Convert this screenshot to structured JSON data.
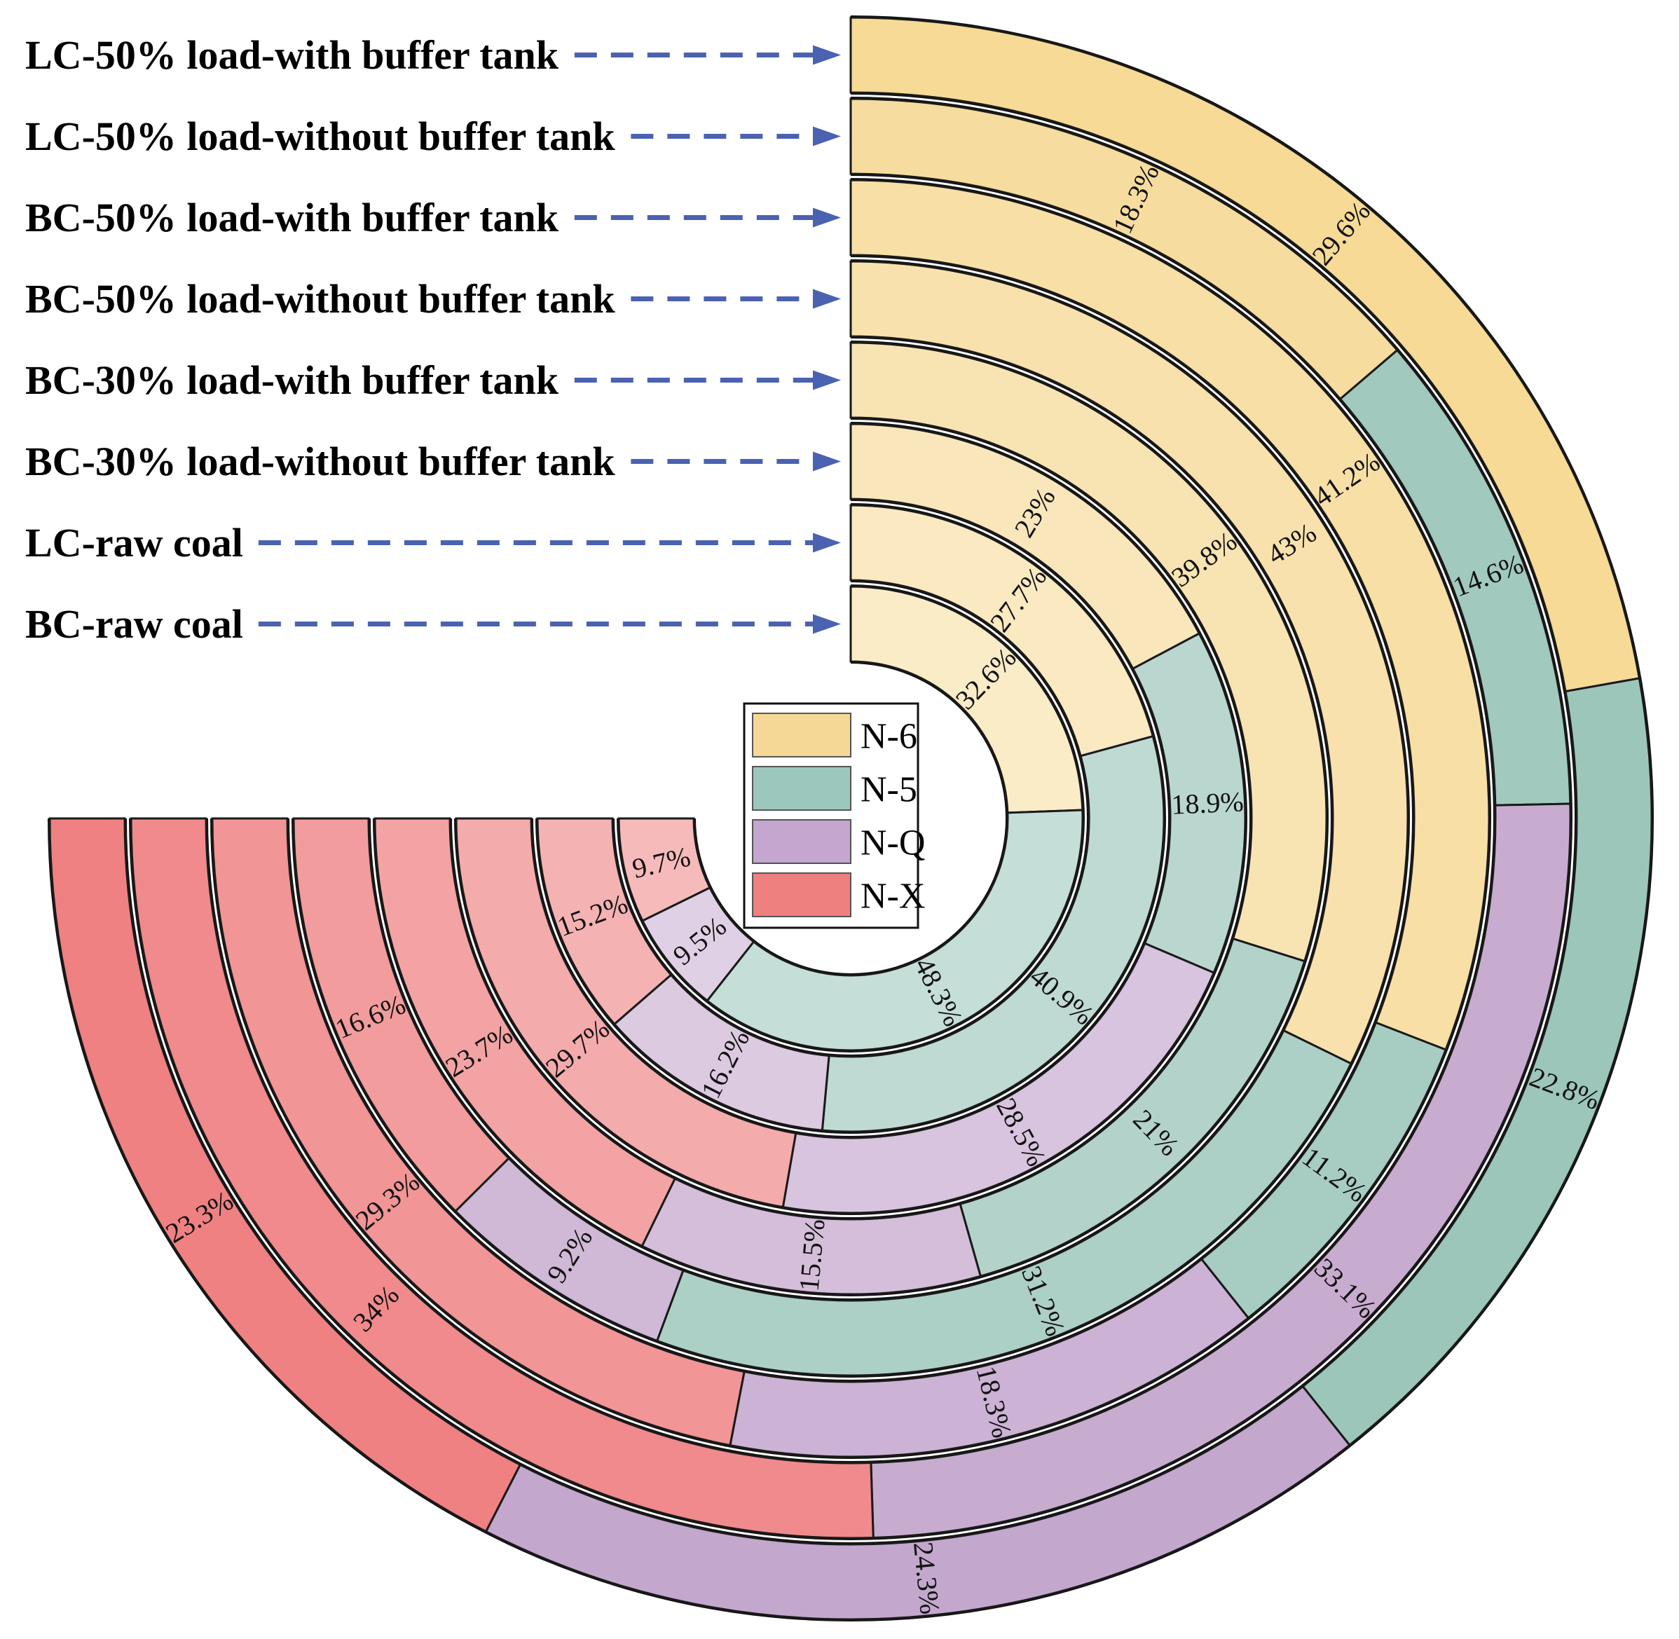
{
  "chart_data": {
    "type": "radial-stacked-bar",
    "title": "",
    "legend_position": "center",
    "legend": [
      {
        "name": "N-6",
        "color": "#F5D896"
      },
      {
        "name": "N-5",
        "color": "#9CC7BC"
      },
      {
        "name": "N-Q",
        "color": "#C4A6CE"
      },
      {
        "name": "N-X",
        "color": "#EE8080"
      }
    ],
    "rings": [
      {
        "label": "LC-50% load-with buffer tank",
        "values": {
          "N-6": 29.6,
          "N-5": 22.8,
          "N-Q": 24.3,
          "N-X": 23.3
        },
        "texts": {
          "N-6": "29.6%",
          "N-5": "22.8%",
          "N-Q": "24.3%",
          "N-X": "23.3%"
        }
      },
      {
        "label": "LC-50% load-without buffer tank",
        "values": {
          "N-6": 18.3,
          "N-5": 14.6,
          "N-Q": 33.1,
          "N-X": 34.0
        },
        "texts": {
          "N-6": "18.3%",
          "N-5": "14.6%",
          "N-Q": "33.1%",
          "N-X": "34%"
        }
      },
      {
        "label": "BC-50% load-with buffer tank",
        "values": {
          "N-6": 41.2,
          "N-5": 11.2,
          "N-Q": 18.3,
          "N-X": 29.3
        },
        "texts": {
          "N-6": "41.2%",
          "N-5": "11.2%",
          "N-Q": "18.3%",
          "N-X": "29.3%"
        }
      },
      {
        "label": "BC-50% load-without buffer tank",
        "values": {
          "N-6": 43.0,
          "N-5": 31.2,
          "N-Q": 9.2,
          "N-X": 16.6
        },
        "texts": {
          "N-6": "43%",
          "N-5": "31.2%",
          "N-Q": "9.2%",
          "N-X": "16.6%"
        }
      },
      {
        "label": "BC-30% load-with buffer tank",
        "values": {
          "N-6": 39.8,
          "N-5": 21.0,
          "N-Q": 15.5,
          "N-X": 23.7
        },
        "texts": {
          "N-6": "39.8%",
          "N-5": "21%",
          "N-Q": "15.5%",
          "N-X": "23.7%"
        }
      },
      {
        "label": "BC-30% load-without buffer tank",
        "values": {
          "N-6": 23.0,
          "N-5": 18.9,
          "N-Q": 28.5,
          "N-X": 29.7
        },
        "texts": {
          "N-6": "23%",
          "N-5": "18.9%",
          "N-Q": "28.5%",
          "N-X": "29.7%"
        }
      },
      {
        "label": "LC-raw coal",
        "values": {
          "N-6": 27.7,
          "N-5": 40.9,
          "N-Q": 16.2,
          "N-X": 15.2
        },
        "texts": {
          "N-6": "27.7%",
          "N-5": "40.9%",
          "N-Q": "16.2%",
          "N-X": "15.2%"
        }
      },
      {
        "label": "BC-raw coal",
        "values": {
          "N-6": 32.6,
          "N-5": 48.3,
          "N-Q": 9.5,
          "N-X": 9.7
        },
        "texts": {
          "N-6": "32.6%",
          "N-5": "48.3%",
          "N-Q": "9.5%",
          "N-X": "9.7%"
        }
      }
    ],
    "ring_shades": [
      {
        "N-6": "#F6DA95",
        "N-5": "#9CC6BA",
        "N-Q": "#C3A7CD",
        "N-X": "#EF8183"
      },
      {
        "N-6": "#F6DC9E",
        "N-5": "#A1C9BE",
        "N-Q": "#C8ACD0",
        "N-X": "#F08A8C"
      },
      {
        "N-6": "#F7DFA6",
        "N-5": "#A7CCC2",
        "N-Q": "#CCB2D4",
        "N-X": "#F19596"
      },
      {
        "N-6": "#F8E1AC",
        "N-5": "#ADD0C6",
        "N-Q": "#D0B8D7",
        "N-X": "#F29C9D"
      },
      {
        "N-6": "#F8E4B3",
        "N-5": "#B3D3CA",
        "N-Q": "#D4BEDA",
        "N-X": "#F3A3A4"
      },
      {
        "N-6": "#F9E6BA",
        "N-5": "#B9D7CF",
        "N-Q": "#D8C4DE",
        "N-X": "#F4ABAC"
      },
      {
        "N-6": "#FAE9C1",
        "N-5": "#BFDAD3",
        "N-Q": "#DCCAE1",
        "N-X": "#F5B2B3"
      },
      {
        "N-6": "#FBECC8",
        "N-5": "#C5DED7",
        "N-Q": "#E0D0E5",
        "N-X": "#F6BABB"
      }
    ],
    "arrow_color": "#4A62B0"
  }
}
